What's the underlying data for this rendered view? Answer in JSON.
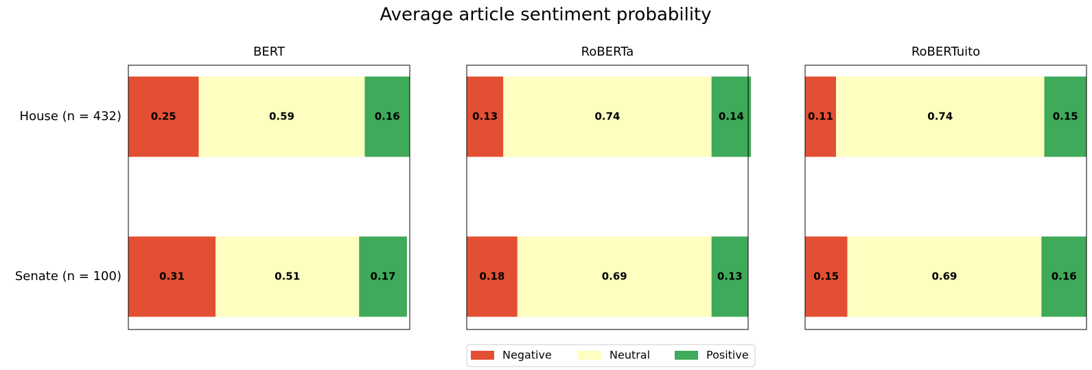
{
  "chart_data": {
    "type": "bar",
    "orientation": "horizontal-stacked",
    "title": "Average article sentiment probability",
    "categories": [
      "House (n = 432)",
      "Senate (n = 100)"
    ],
    "xlim": [
      0,
      1
    ],
    "grid": false,
    "legend": {
      "placement": "bottom-center",
      "entries": [
        "Negative",
        "Neutral",
        "Positive"
      ]
    },
    "colors": {
      "Negative": "#e34f33",
      "Neutral": "#fdfec0",
      "Positive": "#3faa59"
    },
    "panels": [
      {
        "title": "BERT",
        "series": [
          {
            "name": "Negative",
            "values": [
              0.25,
              0.31
            ]
          },
          {
            "name": "Neutral",
            "values": [
              0.59,
              0.51
            ]
          },
          {
            "name": "Positive",
            "values": [
              0.16,
              0.17
            ]
          }
        ]
      },
      {
        "title": "RoBERTa",
        "series": [
          {
            "name": "Negative",
            "values": [
              0.13,
              0.18
            ]
          },
          {
            "name": "Neutral",
            "values": [
              0.74,
              0.69
            ]
          },
          {
            "name": "Positive",
            "values": [
              0.14,
              0.13
            ]
          }
        ]
      },
      {
        "title": "RoBERTuito",
        "series": [
          {
            "name": "Negative",
            "values": [
              0.11,
              0.15
            ]
          },
          {
            "name": "Neutral",
            "values": [
              0.74,
              0.69
            ]
          },
          {
            "name": "Positive",
            "values": [
              0.15,
              0.16
            ]
          }
        ]
      }
    ]
  }
}
